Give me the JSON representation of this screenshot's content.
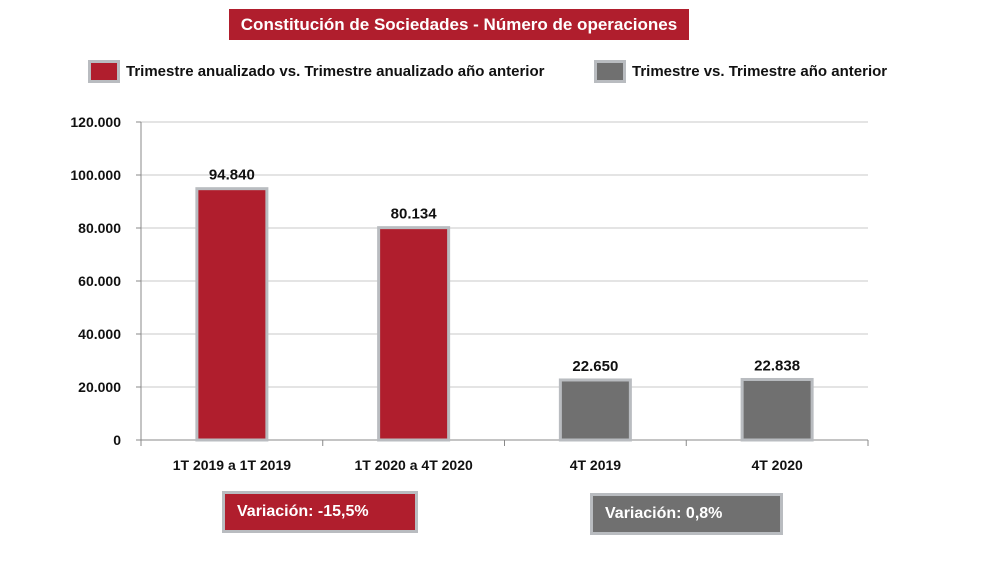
{
  "colors": {
    "red": "#b01e2d",
    "gray": "#707070",
    "bar_border": "#b9bcc0"
  },
  "legend": [
    {
      "label": "Trimestre anualizado vs. Trimestre anualizado año anterior",
      "color": "#b01e2d"
    },
    {
      "label": "Trimestre vs. Trimestre año anterior",
      "color": "#707070"
    }
  ],
  "variations": [
    {
      "label": "Variación:  -15,5%",
      "color": "#b01e2d"
    },
    {
      "label": "Variación: 0,8%",
      "color": "#707070"
    }
  ],
  "chart_data": {
    "type": "bar",
    "title": "Constitución de Sociedades - Número de operaciones",
    "categories": [
      "1T 2019 a 1T 2019",
      "1T 2020 a 4T 2020",
      "4T 2019",
      "4T 2020"
    ],
    "values": [
      94840,
      80134,
      22650,
      22838
    ],
    "value_labels": [
      "94.840",
      "80.134",
      "22.650",
      "22.838"
    ],
    "bar_colors": [
      "#b01e2d",
      "#b01e2d",
      "#707070",
      "#707070"
    ],
    "ylim": [
      0,
      120000
    ],
    "yticks": [
      0,
      20000,
      40000,
      60000,
      80000,
      100000,
      120000
    ],
    "ytick_labels": [
      "0",
      "20.000",
      "40.000",
      "60.000",
      "80.000",
      "100.000",
      "120.000"
    ],
    "grid": true,
    "legend_position": "top",
    "xlabel": "",
    "ylabel": ""
  }
}
